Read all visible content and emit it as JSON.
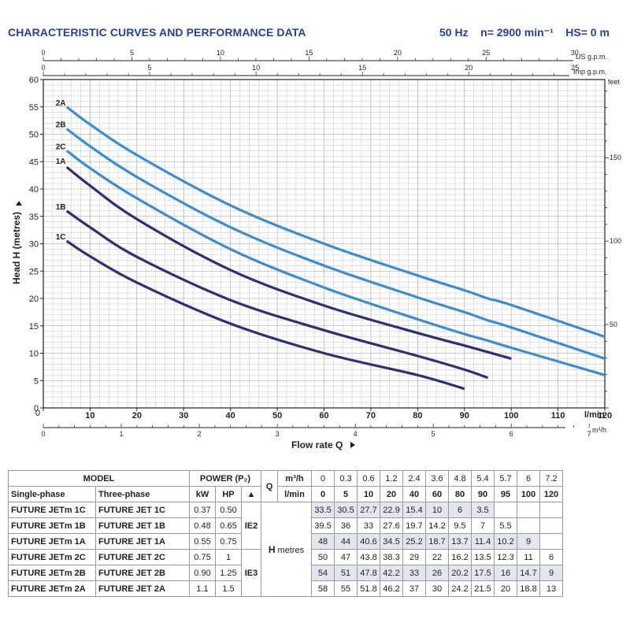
{
  "header": {
    "title": "CHARACTERISTIC CURVES AND PERFORMANCE DATA",
    "freq": "50 Hz",
    "speed": "n= 2900 min⁻¹",
    "hs": "HS= 0 m"
  },
  "chart_data": {
    "type": "line",
    "title": "CHARACTERISTIC CURVES AND PERFORMANCE DATA",
    "xlabel": "Flow rate  Q",
    "ylabel": "Head  H  (metres)",
    "xlim": [
      0,
      120
    ],
    "ylim": [
      0,
      60
    ],
    "x_unit": "l/min",
    "y_right_unit": "feet",
    "x_ticks": [
      0,
      10,
      20,
      30,
      40,
      50,
      60,
      70,
      80,
      90,
      100,
      110,
      120
    ],
    "y_ticks": [
      0,
      5,
      10,
      15,
      20,
      25,
      30,
      35,
      40,
      45,
      50,
      55,
      60
    ],
    "feet_ticks": [
      50,
      100,
      150
    ],
    "m3h_ticks": [
      0,
      1,
      2,
      3,
      4,
      5,
      6,
      7
    ],
    "m3h_unit": "m³/h",
    "usgpm_ticks": [
      0,
      5,
      10,
      15,
      20,
      25,
      30
    ],
    "usgpm_unit": "US g.p.m.",
    "impgpm_ticks": [
      0,
      5,
      10,
      15,
      20,
      25
    ],
    "impgpm_unit": "Imp g.p.m.",
    "grid": true,
    "series": [
      {
        "name": "2A",
        "color": "#3d8ccf",
        "x": [
          5,
          10,
          20,
          40,
          60,
          80,
          90,
          95,
          100,
          120
        ],
        "y": [
          55,
          51.8,
          46.2,
          37,
          30,
          24.2,
          21.5,
          20,
          18.8,
          13
        ]
      },
      {
        "name": "2B",
        "color": "#3d8ccf",
        "x": [
          5,
          10,
          20,
          40,
          60,
          80,
          90,
          95,
          100,
          120
        ],
        "y": [
          51,
          47.8,
          42.2,
          33,
          26,
          20.2,
          17.5,
          16,
          14.7,
          9
        ]
      },
      {
        "name": "2C",
        "color": "#3d8ccf",
        "x": [
          5,
          10,
          20,
          40,
          60,
          80,
          90,
          95,
          100,
          120
        ],
        "y": [
          47,
          43.8,
          38.3,
          29,
          22,
          16.2,
          13.5,
          12.3,
          11,
          6
        ]
      },
      {
        "name": "1A",
        "color": "#2f2f73",
        "x": [
          5,
          10,
          20,
          40,
          60,
          80,
          90,
          95,
          100
        ],
        "y": [
          44,
          40.6,
          34.5,
          25.2,
          18.7,
          13.7,
          11.4,
          10.2,
          9
        ]
      },
      {
        "name": "1B",
        "color": "#2f2f73",
        "x": [
          5,
          10,
          20,
          40,
          60,
          80,
          90,
          95
        ],
        "y": [
          36,
          33,
          27.6,
          19.7,
          14.2,
          9.5,
          7,
          5.5
        ]
      },
      {
        "name": "1C",
        "color": "#2f2f73",
        "x": [
          5,
          10,
          20,
          40,
          60,
          80,
          90
        ],
        "y": [
          30.5,
          27.7,
          22.9,
          15.4,
          10,
          6,
          3.5
        ]
      }
    ]
  },
  "table": {
    "model_header": "MODEL",
    "single_phase_header": "Single-phase",
    "three_phase_header": "Three-phase",
    "power_header": "POWER (P₂)",
    "kw_header": "kW",
    "hp_header": "HP",
    "triangle": "▲",
    "q_label": "Q",
    "q_unit_m3h": "m³/h",
    "q_unit_lmin": "l/min",
    "h_label": "H",
    "h_unit": "metres",
    "q_m3h": [
      "0",
      "0.3",
      "0.6",
      "1.2",
      "2.4",
      "3.6",
      "4.8",
      "5.4",
      "5.7",
      "6",
      "7.2"
    ],
    "q_lmin": [
      "0",
      "5",
      "10",
      "20",
      "40",
      "60",
      "80",
      "90",
      "95",
      "100",
      "120"
    ],
    "ie2": "IE2",
    "ie3": "IE3",
    "rows": [
      {
        "single": "FUTURE JETm 1C",
        "three": "FUTURE JET 1C",
        "kw": "0.37",
        "hp": "0.50",
        "h": [
          "33.5",
          "30.5",
          "27.7",
          "22.9",
          "15.4",
          "10",
          "6",
          "3.5",
          "",
          "",
          ""
        ]
      },
      {
        "single": "FUTURE JETm 1B",
        "three": "FUTURE JET 1B",
        "kw": "0.48",
        "hp": "0.65",
        "h": [
          "39.5",
          "36",
          "33",
          "27.6",
          "19.7",
          "14.2",
          "9.5",
          "7",
          "5.5",
          "",
          ""
        ]
      },
      {
        "single": "FUTURE JETm 1A",
        "three": "FUTURE JET 1A",
        "kw": "0.55",
        "hp": "0.75",
        "h": [
          "48",
          "44",
          "40.6",
          "34.5",
          "25.2",
          "18.7",
          "13.7",
          "11.4",
          "10.2",
          "9",
          ""
        ]
      },
      {
        "single": "FUTURE JETm 2C",
        "three": "FUTURE JET 2C",
        "kw": "0.75",
        "hp": "1",
        "h": [
          "50",
          "47",
          "43.8",
          "38.3",
          "29",
          "22",
          "16.2",
          "13.5",
          "12.3",
          "11",
          "6"
        ]
      },
      {
        "single": "FUTURE JETm 2B",
        "three": "FUTURE JET 2B",
        "kw": "0.90",
        "hp": "1.25",
        "h": [
          "54",
          "51",
          "47.8",
          "42.2",
          "33",
          "26",
          "20.2",
          "17.5",
          "16",
          "14.7",
          "9"
        ]
      },
      {
        "single": "FUTURE JETm 2A",
        "three": "FUTURE JET 2A",
        "kw": "1.1",
        "hp": "1.5",
        "h": [
          "58",
          "55",
          "51.8",
          "46.2",
          "37",
          "30",
          "24.2",
          "21.5",
          "20",
          "18.8",
          "13"
        ]
      }
    ]
  }
}
